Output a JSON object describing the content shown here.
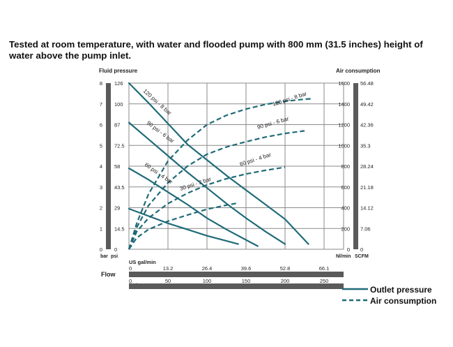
{
  "caption": "Tested at room temperature, with water and flooded pump with 800 mm  (31.5 inches) height of water above the pump inlet.",
  "chart_data": {
    "type": "line",
    "title": "",
    "x_axis": {
      "label": "Flow",
      "primary_unit": "l/min",
      "primary_ticks": [
        "0",
        "50",
        "100",
        "150",
        "200",
        "250"
      ],
      "primary_range": [
        0,
        275
      ],
      "secondary_unit": "US gal/min",
      "secondary_ticks": [
        "0",
        "13.2",
        "26.4",
        "39.6",
        "52.8",
        "66.1"
      ]
    },
    "left_axis": {
      "label": "Fluid pressure",
      "bar_unit": "bar",
      "psi_unit": "psi",
      "bar_ticks": [
        "0",
        "1",
        "2",
        "3",
        "4",
        "5",
        "6",
        "7",
        "8"
      ],
      "psi_ticks": [
        "0",
        "14.5",
        "29",
        "43.5",
        "58",
        "72.5",
        "87",
        "100",
        "126"
      ],
      "range": [
        0,
        8
      ]
    },
    "right_axis": {
      "label": "Air consumption",
      "nl_unit": "Nl/min",
      "scfm_unit": "SCFM",
      "nl_ticks": [
        "0",
        "200",
        "400",
        "600",
        "800",
        "1000",
        "1200",
        "1400",
        "1600"
      ],
      "scfm_ticks": [
        "0",
        "7.06",
        "14.12",
        "21.18",
        "28.24",
        "35.3",
        "42.36",
        "49.42",
        "56.48"
      ],
      "range": [
        0,
        1600
      ]
    },
    "pressure_series": [
      {
        "name": "120 psi - 8 bar",
        "points": [
          [
            0,
            8
          ],
          [
            25,
            7.05
          ],
          [
            50,
            6.05
          ],
          [
            75,
            5.05
          ],
          [
            100,
            4.3
          ],
          [
            125,
            3.55
          ],
          [
            150,
            2.85
          ],
          [
            175,
            2.15
          ],
          [
            200,
            1.45
          ],
          [
            230,
            0.25
          ]
        ]
      },
      {
        "name": "90 psi - 6 bar",
        "points": [
          [
            0,
            6.1
          ],
          [
            25,
            5.3
          ],
          [
            50,
            4.5
          ],
          [
            75,
            3.7
          ],
          [
            100,
            2.95
          ],
          [
            125,
            2.2
          ],
          [
            150,
            1.5
          ],
          [
            175,
            0.85
          ],
          [
            200,
            0.25
          ]
        ]
      },
      {
        "name": "60 psi - 4 bar",
        "points": [
          [
            0,
            3.9
          ],
          [
            25,
            3.35
          ],
          [
            50,
            2.75
          ],
          [
            75,
            2.15
          ],
          [
            100,
            1.5
          ],
          [
            125,
            0.95
          ],
          [
            150,
            0.45
          ],
          [
            165,
            0.15
          ]
        ]
      },
      {
        "name": "30 psi - 2 bar",
        "points": [
          [
            0,
            1.95
          ],
          [
            25,
            1.6
          ],
          [
            50,
            1.25
          ],
          [
            75,
            0.95
          ],
          [
            100,
            0.65
          ],
          [
            125,
            0.4
          ],
          [
            140,
            0.25
          ]
        ]
      }
    ],
    "air_series": [
      {
        "name": "120 psi - 8 bar",
        "points": [
          [
            0,
            0
          ],
          [
            10,
            250
          ],
          [
            25,
            530
          ],
          [
            50,
            850
          ],
          [
            75,
            1050
          ],
          [
            100,
            1200
          ],
          [
            125,
            1290
          ],
          [
            150,
            1350
          ],
          [
            175,
            1395
          ],
          [
            200,
            1425
          ],
          [
            225,
            1445
          ],
          [
            235,
            1450
          ]
        ]
      },
      {
        "name": "90 psi - 6 bar",
        "points": [
          [
            0,
            0
          ],
          [
            10,
            210
          ],
          [
            25,
            420
          ],
          [
            50,
            640
          ],
          [
            75,
            800
          ],
          [
            100,
            915
          ],
          [
            125,
            985
          ],
          [
            150,
            1035
          ],
          [
            175,
            1080
          ],
          [
            200,
            1115
          ],
          [
            225,
            1140
          ]
        ]
      },
      {
        "name": "60 psi - 4 bar",
        "points": [
          [
            0,
            0
          ],
          [
            10,
            170
          ],
          [
            25,
            300
          ],
          [
            50,
            440
          ],
          [
            75,
            540
          ],
          [
            100,
            620
          ],
          [
            125,
            680
          ],
          [
            150,
            725
          ],
          [
            175,
            760
          ],
          [
            200,
            790
          ]
        ]
      },
      {
        "name": "30 psi - 2 bar",
        "points": [
          [
            0,
            0
          ],
          [
            10,
            110
          ],
          [
            25,
            190
          ],
          [
            50,
            270
          ],
          [
            75,
            330
          ],
          [
            100,
            385
          ],
          [
            125,
            425
          ],
          [
            140,
            445
          ]
        ]
      }
    ],
    "legend": [
      {
        "label": "Outlet pressure",
        "style": "solid"
      },
      {
        "label": "Air consumption",
        "style": "dashed"
      }
    ],
    "legend_position": "bottom-right",
    "grid": true,
    "line_color": "#1f6b78",
    "axis_bar_color": "#5a5a5a"
  }
}
